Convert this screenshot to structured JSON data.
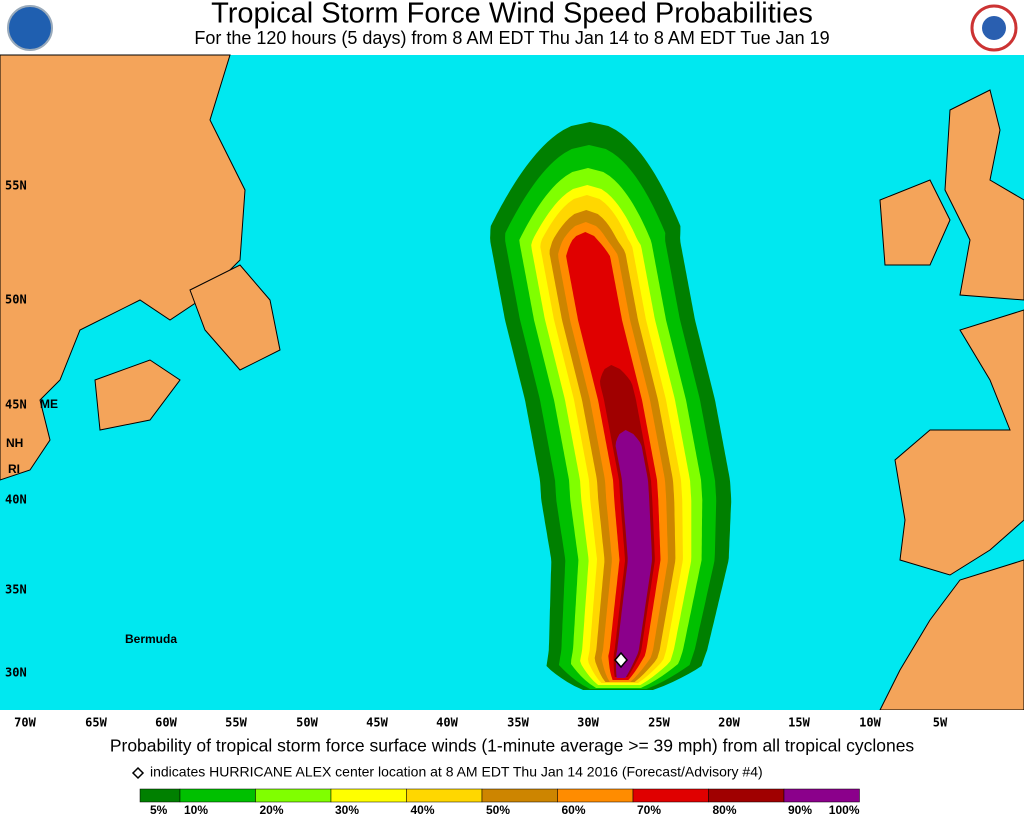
{
  "header": {
    "title": "Tropical Storm Force Wind Speed Probabilities",
    "subtitle": "For the 120 hours (5 days) from 8 AM EDT Thu Jan 14 to 8 AM EDT Tue Jan 19"
  },
  "map": {
    "latitude_labels": [
      "55N",
      "50N",
      "45N",
      "40N",
      "35N",
      "30N"
    ],
    "longitude_labels": [
      "70W",
      "65W",
      "60W",
      "55W",
      "50W",
      "45W",
      "40W",
      "35W",
      "30W",
      "25W",
      "20W",
      "15W",
      "10W",
      "5W"
    ],
    "place_labels": [
      "ME",
      "NH",
      "RI",
      "Bermuda"
    ]
  },
  "caption": "Probability of tropical storm force surface winds (1-minute average >= 39 mph) from all tropical cyclones",
  "note": "indicates HURRICANE ALEX center location at 8 AM EDT Thu Jan 14 2016 (Forecast/Advisory #4)",
  "legend": {
    "labels": [
      "5%",
      "10%",
      "20%",
      "30%",
      "40%",
      "50%",
      "60%",
      "70%",
      "80%",
      "90%",
      "100%"
    ],
    "colors": [
      "#008000",
      "#00c000",
      "#80ff00",
      "#ffff00",
      "#ffd700",
      "#cd8500",
      "#ff8c00",
      "#e00000",
      "#a00000",
      "#8b008b"
    ]
  }
}
